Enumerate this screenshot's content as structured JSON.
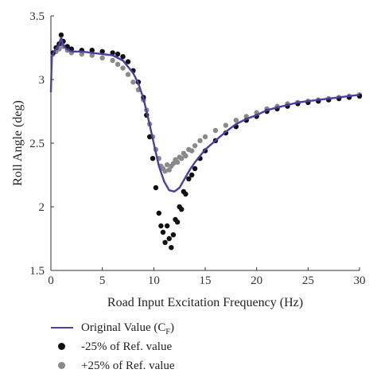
{
  "chart_data": {
    "type": "scatter",
    "title": "",
    "xlabel": "Road Input Excitation Frequency (Hz)",
    "ylabel": "Roll Angle (deg)",
    "xlim": [
      0,
      30
    ],
    "ylim": [
      1.5,
      3.5
    ],
    "xticks": [
      0,
      5,
      10,
      15,
      20,
      25,
      30
    ],
    "xtick_labels": [
      "0",
      "5",
      "10",
      "15",
      "20",
      "25",
      "30"
    ],
    "yticks": [
      1.5,
      2,
      2.5,
      3,
      3.5
    ],
    "ytick_labels": [
      "1.5",
      "2",
      "2.5",
      "3",
      "3.5"
    ],
    "grid": false,
    "legend_position": "below",
    "series": [
      {
        "name": "Original Value (C",
        "name_subscript": "F",
        "name_suffix": ")",
        "kind": "line",
        "color": "#4a3fa5",
        "x": [
          0,
          0.05,
          0.1,
          0.2,
          0.3,
          0.5,
          0.8,
          1.0,
          1.2,
          1.5,
          2,
          3,
          4,
          5,
          6,
          7,
          8,
          8.5,
          9,
          9.5,
          10,
          10.5,
          11,
          11.5,
          12,
          12.5,
          13,
          13.5,
          14,
          15,
          16,
          17,
          18,
          19,
          20,
          21,
          22,
          23,
          24,
          25,
          26,
          27,
          28,
          29,
          30
        ],
        "y": [
          2.9,
          3.05,
          3.18,
          3.2,
          3.22,
          3.24,
          3.27,
          3.33,
          3.27,
          3.24,
          3.22,
          3.22,
          3.21,
          3.2,
          3.19,
          3.15,
          3.05,
          2.97,
          2.85,
          2.68,
          2.5,
          2.32,
          2.2,
          2.13,
          2.12,
          2.15,
          2.22,
          2.29,
          2.35,
          2.45,
          2.52,
          2.59,
          2.65,
          2.69,
          2.72,
          2.76,
          2.78,
          2.8,
          2.82,
          2.83,
          2.84,
          2.85,
          2.86,
          2.87,
          2.88
        ]
      },
      {
        "name": "-25% of Ref. value",
        "kind": "scatter",
        "color": "#111111",
        "x": [
          0.2,
          0.5,
          0.8,
          1.0,
          1.2,
          1.6,
          2,
          3,
          4,
          5,
          6,
          6.5,
          7,
          7.5,
          8,
          8.5,
          9,
          9.3,
          9.6,
          9.9,
          10.2,
          10.5,
          10.7,
          10.9,
          11.1,
          11.3,
          11.5,
          11.7,
          11.9,
          12.1,
          12.3,
          12.5,
          12.7,
          12.9,
          13.1,
          13.4,
          13.7,
          14,
          14.5,
          15,
          16,
          17,
          18,
          19,
          20,
          21,
          22,
          23,
          24,
          25,
          26,
          27,
          28,
          29,
          30
        ],
        "y": [
          3.21,
          3.25,
          3.28,
          3.35,
          3.3,
          3.26,
          3.24,
          3.23,
          3.23,
          3.22,
          3.21,
          3.2,
          3.18,
          3.14,
          3.07,
          2.98,
          2.86,
          2.72,
          2.55,
          2.38,
          2.15,
          1.95,
          1.85,
          1.8,
          1.72,
          1.85,
          1.75,
          1.68,
          1.78,
          1.9,
          1.88,
          2.0,
          1.98,
          2.12,
          2.1,
          2.22,
          2.25,
          2.3,
          2.38,
          2.44,
          2.52,
          2.58,
          2.63,
          2.68,
          2.71,
          2.75,
          2.77,
          2.79,
          2.81,
          2.82,
          2.83,
          2.84,
          2.85,
          2.86,
          2.87
        ]
      },
      {
        "name": "+25% of Ref. value",
        "kind": "scatter",
        "color": "#8a8a8a",
        "x": [
          0.2,
          0.5,
          0.8,
          1.0,
          1.2,
          1.6,
          2,
          3,
          4,
          5,
          6,
          6.5,
          7,
          7.5,
          8,
          8.5,
          9,
          9.3,
          9.6,
          9.9,
          10.2,
          10.5,
          10.7,
          10.9,
          11.1,
          11.3,
          11.5,
          11.7,
          11.9,
          12.1,
          12.3,
          12.5,
          12.7,
          12.9,
          13.1,
          13.4,
          13.7,
          14,
          14.5,
          15,
          16,
          17,
          18,
          19,
          20,
          21,
          22,
          23,
          24,
          25,
          26,
          27,
          28,
          29,
          30
        ],
        "y": [
          3.2,
          3.22,
          3.24,
          3.3,
          3.26,
          3.23,
          3.21,
          3.2,
          3.19,
          3.17,
          3.15,
          3.12,
          3.09,
          3.04,
          2.98,
          2.92,
          2.84,
          2.76,
          2.65,
          2.55,
          2.45,
          2.38,
          2.32,
          2.3,
          2.28,
          2.33,
          2.29,
          2.32,
          2.34,
          2.37,
          2.35,
          2.39,
          2.38,
          2.42,
          2.4,
          2.45,
          2.44,
          2.48,
          2.52,
          2.55,
          2.6,
          2.64,
          2.68,
          2.71,
          2.74,
          2.77,
          2.79,
          2.81,
          2.82,
          2.83,
          2.84,
          2.85,
          2.86,
          2.87,
          2.88
        ]
      }
    ]
  }
}
